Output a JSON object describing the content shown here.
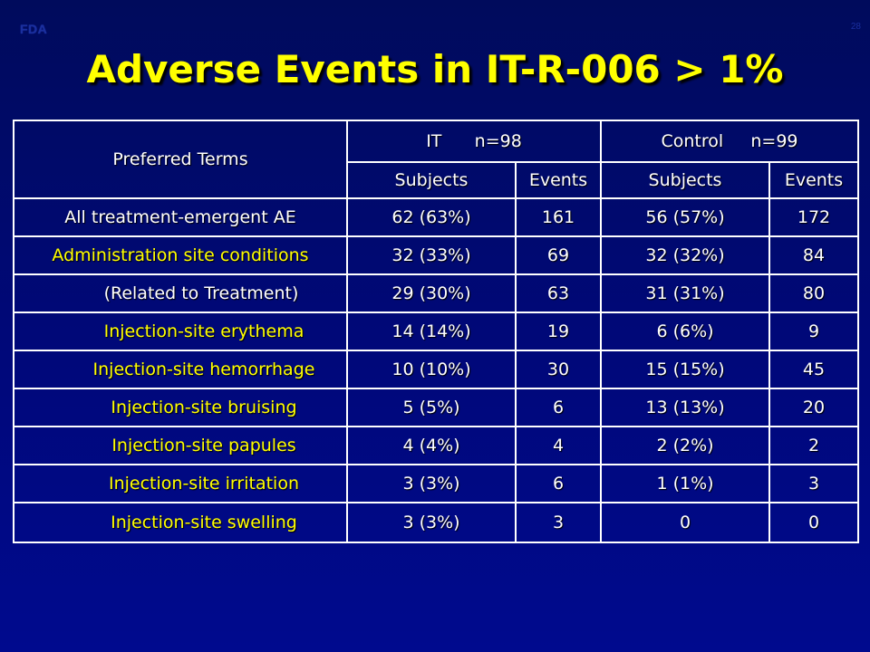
{
  "header": {
    "logo": "FDA",
    "slide_number": "28"
  },
  "title": "Adverse Events in IT-R-006 > 1%",
  "table": {
    "column_header_term": "Preferred Terms",
    "group_it": "IT      n=98",
    "group_control": "Control     n=99",
    "sub_subjects_1": "Subjects",
    "sub_events_1": "Events",
    "sub_subjects_2": "Subjects",
    "sub_events_2": "Events",
    "rows": [
      {
        "term": "All treatment-emergent AE",
        "it_subjects": "62 (63%)",
        "it_events": "161",
        "ctrl_subjects": "56 (57%)",
        "ctrl_events": "172"
      },
      {
        "term": "Administration site conditions",
        "it_subjects": "32 (33%)",
        "it_events": "69",
        "ctrl_subjects": "32 (32%)",
        "ctrl_events": "84"
      },
      {
        "term": "(Related to Treatment)",
        "it_subjects": "29 (30%)",
        "it_events": "63",
        "ctrl_subjects": "31 (31%)",
        "ctrl_events": "80"
      },
      {
        "term": "Injection-site erythema",
        "it_subjects": "14 (14%)",
        "it_events": "19",
        "ctrl_subjects": "6 (6%)",
        "ctrl_events": "9"
      },
      {
        "term": "Injection-site hemorrhage",
        "it_subjects": "10 (10%)",
        "it_events": "30",
        "ctrl_subjects": "15 (15%)",
        "ctrl_events": "45"
      },
      {
        "term": "Injection-site bruising",
        "it_subjects": "5 (5%)",
        "it_events": "6",
        "ctrl_subjects": "13 (13%)",
        "ctrl_events": "20"
      },
      {
        "term": "Injection-site papules",
        "it_subjects": "4 (4%)",
        "it_events": "4",
        "ctrl_subjects": "2 (2%)",
        "ctrl_events": "2"
      },
      {
        "term": "Injection-site irritation",
        "it_subjects": "3 (3%)",
        "it_events": "6",
        "ctrl_subjects": "1 (1%)",
        "ctrl_events": "3"
      },
      {
        "term": "Injection-site swelling",
        "it_subjects": "3 (3%)",
        "it_events": "3",
        "ctrl_subjects": "0",
        "ctrl_events": "0"
      }
    ]
  },
  "colors": {
    "background": "#00087a",
    "title": "#ffff00",
    "highlight_text": "#ffff00",
    "normal_text": "#ffffff",
    "grid": "#ffffff"
  }
}
